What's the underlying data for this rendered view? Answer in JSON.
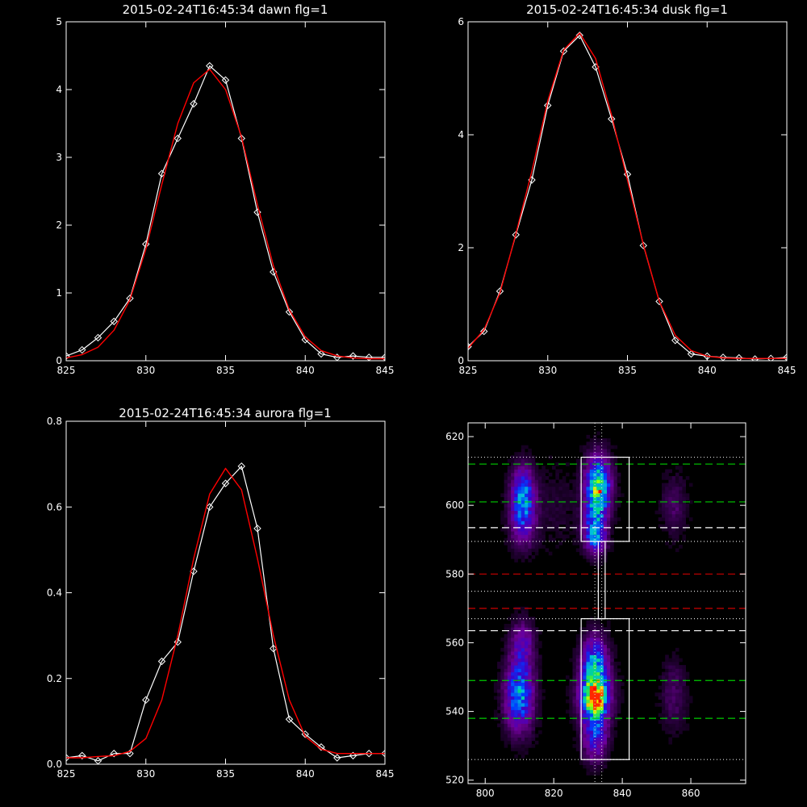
{
  "chart_data": [
    {
      "type": "line",
      "title": "2015-02-24T16:45:34 dawn flg=1",
      "xlim": [
        825,
        845
      ],
      "ylim": [
        0,
        5
      ],
      "xticks": [
        825,
        830,
        835,
        840,
        845
      ],
      "yticks": [
        0,
        1,
        2,
        3,
        4,
        5
      ],
      "series": [
        {
          "color": "#ffffff",
          "marker": "diamond",
          "x": [
            825,
            826,
            827,
            828,
            829,
            830,
            831,
            832,
            833,
            834,
            835,
            836,
            837,
            838,
            839,
            840,
            841,
            842,
            843,
            844,
            845
          ],
          "y": [
            0.07,
            0.16,
            0.34,
            0.58,
            0.92,
            1.72,
            2.76,
            3.28,
            3.79,
            4.35,
            4.14,
            3.28,
            2.19,
            1.31,
            0.72,
            0.31,
            0.1,
            0.05,
            0.07,
            0.05,
            0.05
          ]
        },
        {
          "color": "#ff0000",
          "type": "fit",
          "x": [
            825,
            826,
            827,
            828,
            829,
            830,
            831,
            832,
            833,
            834,
            835,
            836,
            837,
            838,
            839,
            840,
            841,
            842,
            843,
            844,
            845
          ],
          "y": [
            0.04,
            0.09,
            0.2,
            0.45,
            0.9,
            1.65,
            2.6,
            3.5,
            4.1,
            4.3,
            4.0,
            3.3,
            2.3,
            1.4,
            0.75,
            0.35,
            0.15,
            0.07,
            0.04,
            0.03,
            0.03
          ]
        }
      ]
    },
    {
      "type": "line",
      "title": "2015-02-24T16:45:34 dusk flg=1",
      "xlim": [
        825,
        845
      ],
      "ylim": [
        0,
        6
      ],
      "xticks": [
        825,
        830,
        835,
        840,
        845
      ],
      "yticks": [
        0,
        2,
        4,
        6
      ],
      "series": [
        {
          "color": "#ffffff",
          "marker": "diamond",
          "x": [
            825,
            826,
            827,
            828,
            829,
            830,
            831,
            832,
            833,
            834,
            835,
            836,
            837,
            838,
            839,
            840,
            841,
            842,
            843,
            844,
            845
          ],
          "y": [
            0.25,
            0.52,
            1.23,
            2.23,
            3.2,
            4.52,
            5.48,
            5.76,
            5.2,
            4.28,
            3.3,
            2.04,
            1.05,
            0.36,
            0.12,
            0.08,
            0.06,
            0.05,
            0.03,
            0.04,
            0.06
          ]
        },
        {
          "color": "#ff0000",
          "type": "fit",
          "x": [
            825,
            826,
            827,
            828,
            829,
            830,
            831,
            832,
            833,
            834,
            835,
            836,
            837,
            838,
            839,
            840,
            841,
            842,
            843,
            844,
            845
          ],
          "y": [
            0.22,
            0.55,
            1.2,
            2.25,
            3.35,
            4.6,
            5.5,
            5.8,
            5.35,
            4.35,
            3.2,
            2.05,
            1.05,
            0.45,
            0.18,
            0.08,
            0.05,
            0.04,
            0.04,
            0.04,
            0.04
          ]
        }
      ]
    },
    {
      "type": "line",
      "title": "2015-02-24T16:45:34 aurora flg=1",
      "xlim": [
        825,
        845
      ],
      "ylim": [
        0,
        0.8
      ],
      "xticks": [
        825,
        830,
        835,
        840,
        845
      ],
      "yticks": [
        0.0,
        0.2,
        0.4,
        0.6,
        0.8
      ],
      "ytick_labels": [
        "0.0",
        "0.2",
        "0.4",
        "0.6",
        "0.8"
      ],
      "series": [
        {
          "color": "#ffffff",
          "marker": "diamond",
          "x": [
            825,
            826,
            827,
            828,
            829,
            830,
            831,
            832,
            833,
            834,
            835,
            836,
            837,
            838,
            839,
            840,
            841,
            842,
            843,
            844,
            845
          ],
          "y": [
            0.015,
            0.02,
            0.008,
            0.025,
            0.025,
            0.15,
            0.24,
            0.285,
            0.45,
            0.6,
            0.655,
            0.695,
            0.55,
            0.27,
            0.105,
            0.07,
            0.04,
            0.015,
            0.02,
            0.025,
            0.025
          ]
        },
        {
          "color": "#ff0000",
          "type": "fit",
          "x": [
            825,
            826,
            827,
            828,
            829,
            830,
            831,
            832,
            833,
            834,
            835,
            836,
            837,
            838,
            839,
            840,
            841,
            842,
            843,
            844,
            845
          ],
          "y": [
            0.015,
            0.015,
            0.018,
            0.02,
            0.03,
            0.06,
            0.15,
            0.3,
            0.48,
            0.63,
            0.69,
            0.64,
            0.48,
            0.3,
            0.15,
            0.065,
            0.035,
            0.025,
            0.025,
            0.025,
            0.025
          ]
        }
      ]
    },
    {
      "type": "heatmap",
      "xlim": [
        795,
        876
      ],
      "ylim": [
        519,
        624
      ],
      "xticks": [
        800,
        820,
        840,
        860
      ],
      "yticks": [
        520,
        540,
        560,
        580,
        600,
        620
      ],
      "blobs": [
        {
          "x": 811,
          "y": 604,
          "sx": 2.3,
          "sy": 5,
          "amp": 0.45
        },
        {
          "x": 811,
          "y": 595,
          "sx": 2.5,
          "sy": 5,
          "amp": 0.3
        },
        {
          "x": 833,
          "y": 606,
          "sx": 2.5,
          "sy": 5.5,
          "amp": 0.7
        },
        {
          "x": 832,
          "y": 595,
          "sx": 2.3,
          "sy": 5,
          "amp": 0.4
        },
        {
          "x": 832,
          "y": 590,
          "sx": 2,
          "sy": 3,
          "amp": 0.25
        },
        {
          "x": 810,
          "y": 545,
          "sx": 2.8,
          "sy": 7,
          "amp": 0.55
        },
        {
          "x": 811,
          "y": 560,
          "sx": 2.3,
          "sy": 4.5,
          "amp": 0.25
        },
        {
          "x": 832,
          "y": 545,
          "sx": 3.0,
          "sy": 5,
          "amp": 0.8
        },
        {
          "x": 832,
          "y": 543,
          "sx": 1.5,
          "sy": 2,
          "amp": 0.45
        },
        {
          "x": 832,
          "y": 555,
          "sx": 2.5,
          "sy": 5,
          "amp": 0.45
        },
        {
          "x": 832,
          "y": 533,
          "sx": 2.5,
          "sy": 5,
          "amp": 0.35
        },
        {
          "x": 855,
          "y": 600,
          "sx": 2.5,
          "sy": 6,
          "amp": 0.12
        },
        {
          "x": 855,
          "y": 545,
          "sx": 2.5,
          "sy": 7,
          "amp": 0.12
        },
        {
          "x": 820,
          "y": 600,
          "sx": 5,
          "sy": 8,
          "amp": 0.05
        }
      ],
      "hlines": [
        {
          "y": 612,
          "color": "#00cc00",
          "style": "dashed"
        },
        {
          "y": 601,
          "color": "#00cc00",
          "style": "dashed"
        },
        {
          "y": 593.5,
          "color": "#ffffff",
          "style": "dashed"
        },
        {
          "y": 580,
          "color": "#cc0000",
          "style": "dashed"
        },
        {
          "y": 570,
          "color": "#cc0000",
          "style": "dashed"
        },
        {
          "y": 563.5,
          "color": "#ffffff",
          "style": "dashed"
        },
        {
          "y": 549,
          "color": "#00cc00",
          "style": "dashed"
        },
        {
          "y": 538,
          "color": "#00cc00",
          "style": "dashed"
        },
        {
          "y": 614,
          "color": "#dddddd",
          "style": "dotted"
        },
        {
          "y": 589.5,
          "color": "#dddddd",
          "style": "dotted"
        },
        {
          "y": 575,
          "color": "#dddddd",
          "style": "dotted"
        },
        {
          "y": 567,
          "color": "#dddddd",
          "style": "dotted"
        },
        {
          "y": 526,
          "color": "#dddddd",
          "style": "dotted"
        }
      ],
      "vlines": [
        {
          "x": 832,
          "color": "#dddddd",
          "style": "dotted"
        },
        {
          "x": 834,
          "color": "#dddddd",
          "style": "dotted"
        }
      ],
      "rects": [
        {
          "x0": 828,
          "x1": 842,
          "y0": 589.5,
          "y1": 614
        },
        {
          "x0": 828,
          "x1": 842,
          "y0": 526,
          "y1": 567
        },
        {
          "x0": 833,
          "x1": 835,
          "y0": 567,
          "y1": 589.5
        }
      ],
      "markers": [
        {
          "x": 833.5,
          "y": 604,
          "color": "#ff0000"
        },
        {
          "x": 833.5,
          "y": 543,
          "color": "#ff0000"
        },
        {
          "x": 832,
          "y": 546.5,
          "color": "#ff0000"
        }
      ]
    }
  ]
}
